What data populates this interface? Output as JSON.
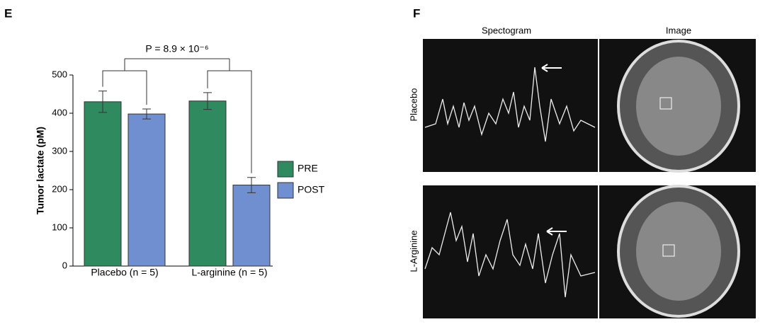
{
  "chart_data": {
    "type": "bar",
    "panel_label": "E",
    "ylabel": "Tumor lactate (pM)",
    "annotation": "P = 8.9 × 10⁻⁶",
    "categories": [
      "Placebo (n = 5)",
      "L-arginine (n = 5)"
    ],
    "series": [
      {
        "name": "PRE",
        "color": "#2f8a5f",
        "values": [
          430,
          432
        ],
        "errors": [
          28,
          22
        ]
      },
      {
        "name": "POST",
        "color": "#6f8fd0",
        "values": [
          398,
          212
        ],
        "errors": [
          13,
          20
        ]
      }
    ],
    "ylim": [
      0,
      500
    ],
    "yticks": [
      0,
      100,
      200,
      300,
      400,
      500
    ],
    "legend": "right"
  },
  "panel_f": {
    "panel_label": "F",
    "columns": [
      "Spectogram",
      "Image"
    ],
    "rows": [
      "Placebo",
      "L-Arginine"
    ]
  }
}
